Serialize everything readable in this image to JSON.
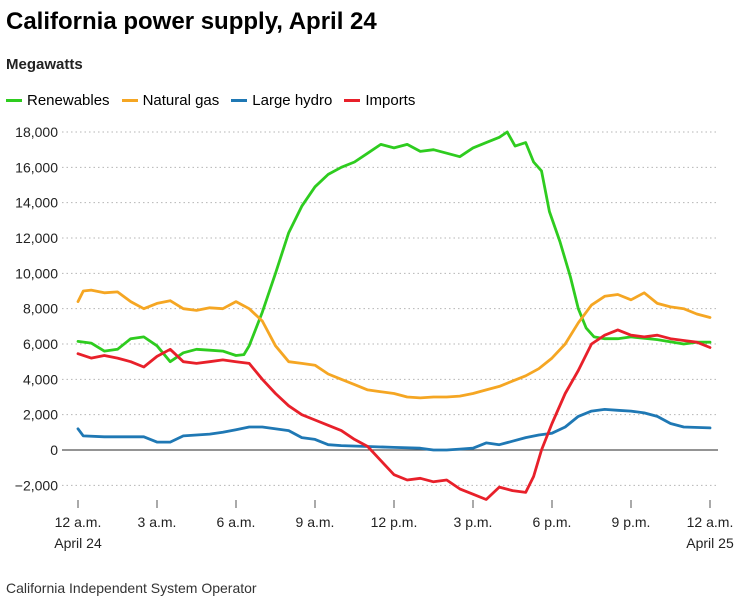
{
  "title": "California power supply, April 24",
  "subtitle": "Megawatts",
  "source": "California Independent System Operator",
  "chart_data": {
    "type": "line",
    "title": "California power supply, April 24",
    "ylabel": "Megawatts",
    "xlim": [
      0,
      24
    ],
    "ylim": [
      -3000,
      18500
    ],
    "grid": true,
    "legend_position": "top-left",
    "yticks": [
      {
        "value": 18000,
        "label": "18,000"
      },
      {
        "value": 16000,
        "label": "16,000"
      },
      {
        "value": 14000,
        "label": "14,000"
      },
      {
        "value": 12000,
        "label": "12,000"
      },
      {
        "value": 10000,
        "label": "10,000"
      },
      {
        "value": 8000,
        "label": "8,000"
      },
      {
        "value": 6000,
        "label": "6,000"
      },
      {
        "value": 4000,
        "label": "4,000"
      },
      {
        "value": 2000,
        "label": "2,000"
      },
      {
        "value": 0,
        "label": "0"
      },
      {
        "value": -2000,
        "label": "−2,000"
      }
    ],
    "xticks": [
      {
        "value": 0,
        "label": "12 a.m.",
        "sublabel": "April 24"
      },
      {
        "value": 3,
        "label": "3 a.m.",
        "sublabel": ""
      },
      {
        "value": 6,
        "label": "6 a.m.",
        "sublabel": ""
      },
      {
        "value": 9,
        "label": "9 a.m.",
        "sublabel": ""
      },
      {
        "value": 12,
        "label": "12 p.m.",
        "sublabel": ""
      },
      {
        "value": 15,
        "label": "3 p.m.",
        "sublabel": ""
      },
      {
        "value": 18,
        "label": "6 p.m.",
        "sublabel": ""
      },
      {
        "value": 21,
        "label": "9 p.m.",
        "sublabel": ""
      },
      {
        "value": 24,
        "label": "12 a.m.",
        "sublabel": "April 25"
      }
    ],
    "series": [
      {
        "name": "Renewables",
        "color": "#2ecc1f",
        "points": [
          [
            0,
            6150
          ],
          [
            0.5,
            6050
          ],
          [
            1,
            5600
          ],
          [
            1.5,
            5700
          ],
          [
            2,
            6300
          ],
          [
            2.5,
            6400
          ],
          [
            3,
            5900
          ],
          [
            3.5,
            5000
          ],
          [
            4,
            5500
          ],
          [
            4.5,
            5700
          ],
          [
            5,
            5650
          ],
          [
            5.5,
            5600
          ],
          [
            6,
            5350
          ],
          [
            6.3,
            5400
          ],
          [
            6.5,
            5900
          ],
          [
            7,
            7800
          ],
          [
            7.5,
            10000
          ],
          [
            8,
            12300
          ],
          [
            8.5,
            13800
          ],
          [
            9,
            14900
          ],
          [
            9.5,
            15600
          ],
          [
            10,
            16000
          ],
          [
            10.5,
            16300
          ],
          [
            11,
            16800
          ],
          [
            11.5,
            17300
          ],
          [
            12,
            17100
          ],
          [
            12.5,
            17300
          ],
          [
            13,
            16900
          ],
          [
            13.5,
            17000
          ],
          [
            14,
            16800
          ],
          [
            14.5,
            16600
          ],
          [
            15,
            17100
          ],
          [
            15.5,
            17400
          ],
          [
            16,
            17700
          ],
          [
            16.3,
            18000
          ],
          [
            16.6,
            17200
          ],
          [
            17,
            17400
          ],
          [
            17.3,
            16300
          ],
          [
            17.6,
            15800
          ],
          [
            17.9,
            13500
          ],
          [
            18.3,
            11800
          ],
          [
            18.7,
            9800
          ],
          [
            19,
            8000
          ],
          [
            19.3,
            6900
          ],
          [
            19.6,
            6400
          ],
          [
            20,
            6300
          ],
          [
            20.5,
            6300
          ],
          [
            21,
            6400
          ],
          [
            22,
            6250
          ],
          [
            23,
            6000
          ],
          [
            23.5,
            6100
          ],
          [
            24,
            6100
          ]
        ]
      },
      {
        "name": "Natural gas",
        "color": "#f5a623",
        "points": [
          [
            0,
            8400
          ],
          [
            0.2,
            9000
          ],
          [
            0.5,
            9050
          ],
          [
            1,
            8900
          ],
          [
            1.5,
            8950
          ],
          [
            2,
            8400
          ],
          [
            2.5,
            8000
          ],
          [
            3,
            8300
          ],
          [
            3.5,
            8450
          ],
          [
            4,
            8000
          ],
          [
            4.5,
            7900
          ],
          [
            5,
            8050
          ],
          [
            5.5,
            8000
          ],
          [
            6,
            8400
          ],
          [
            6.5,
            8000
          ],
          [
            7,
            7300
          ],
          [
            7.5,
            5900
          ],
          [
            8,
            5000
          ],
          [
            8.5,
            4900
          ],
          [
            9,
            4800
          ],
          [
            9.5,
            4300
          ],
          [
            10,
            4000
          ],
          [
            10.5,
            3700
          ],
          [
            11,
            3400
          ],
          [
            11.5,
            3300
          ],
          [
            12,
            3200
          ],
          [
            12.5,
            3000
          ],
          [
            13,
            2950
          ],
          [
            13.5,
            3000
          ],
          [
            14,
            3000
          ],
          [
            14.5,
            3050
          ],
          [
            15,
            3200
          ],
          [
            15.5,
            3400
          ],
          [
            16,
            3600
          ],
          [
            16.5,
            3900
          ],
          [
            17,
            4200
          ],
          [
            17.5,
            4600
          ],
          [
            18,
            5200
          ],
          [
            18.5,
            6000
          ],
          [
            19,
            7200
          ],
          [
            19.5,
            8200
          ],
          [
            20,
            8700
          ],
          [
            20.5,
            8800
          ],
          [
            21,
            8500
          ],
          [
            21.5,
            8900
          ],
          [
            22,
            8300
          ],
          [
            22.5,
            8100
          ],
          [
            23,
            8000
          ],
          [
            23.5,
            7700
          ],
          [
            24,
            7500
          ]
        ]
      },
      {
        "name": "Large hydro",
        "color": "#1f78b4",
        "points": [
          [
            0,
            1200
          ],
          [
            0.2,
            800
          ],
          [
            1,
            750
          ],
          [
            2,
            750
          ],
          [
            2.5,
            750
          ],
          [
            3,
            450
          ],
          [
            3.5,
            450
          ],
          [
            4,
            800
          ],
          [
            5,
            900
          ],
          [
            5.5,
            1000
          ],
          [
            6,
            1150
          ],
          [
            6.5,
            1300
          ],
          [
            7,
            1300
          ],
          [
            8,
            1100
          ],
          [
            8.5,
            700
          ],
          [
            9,
            600
          ],
          [
            9.5,
            300
          ],
          [
            10,
            250
          ],
          [
            11,
            200
          ],
          [
            12,
            150
          ],
          [
            13,
            100
          ],
          [
            13.5,
            0
          ],
          [
            14,
            0
          ],
          [
            14.5,
            50
          ],
          [
            15,
            100
          ],
          [
            15.5,
            400
          ],
          [
            16,
            300
          ],
          [
            16.5,
            500
          ],
          [
            17,
            700
          ],
          [
            17.5,
            850
          ],
          [
            18,
            950
          ],
          [
            18.5,
            1300
          ],
          [
            19,
            1900
          ],
          [
            19.5,
            2200
          ],
          [
            20,
            2300
          ],
          [
            20.5,
            2250
          ],
          [
            21,
            2200
          ],
          [
            21.5,
            2100
          ],
          [
            22,
            1900
          ],
          [
            22.5,
            1500
          ],
          [
            23,
            1300
          ],
          [
            24,
            1250
          ]
        ]
      },
      {
        "name": "Imports",
        "color": "#e8202a",
        "points": [
          [
            0,
            5450
          ],
          [
            0.5,
            5200
          ],
          [
            1,
            5350
          ],
          [
            1.5,
            5200
          ],
          [
            2,
            5000
          ],
          [
            2.5,
            4700
          ],
          [
            3,
            5300
          ],
          [
            3.5,
            5700
          ],
          [
            4,
            5000
          ],
          [
            4.5,
            4900
          ],
          [
            5,
            5000
          ],
          [
            5.5,
            5100
          ],
          [
            6,
            5000
          ],
          [
            6.5,
            4900
          ],
          [
            7,
            4000
          ],
          [
            7.5,
            3200
          ],
          [
            8,
            2500
          ],
          [
            8.5,
            2000
          ],
          [
            9,
            1700
          ],
          [
            9.5,
            1400
          ],
          [
            10,
            1100
          ],
          [
            10.5,
            600
          ],
          [
            11,
            200
          ],
          [
            11.5,
            -600
          ],
          [
            12,
            -1400
          ],
          [
            12.5,
            -1700
          ],
          [
            13,
            -1600
          ],
          [
            13.5,
            -1800
          ],
          [
            14,
            -1700
          ],
          [
            14.5,
            -2200
          ],
          [
            15,
            -2500
          ],
          [
            15.5,
            -2800
          ],
          [
            16,
            -2100
          ],
          [
            16.5,
            -2300
          ],
          [
            17,
            -2400
          ],
          [
            17.3,
            -1500
          ],
          [
            17.6,
            0
          ],
          [
            18,
            1500
          ],
          [
            18.5,
            3200
          ],
          [
            19,
            4500
          ],
          [
            19.5,
            6000
          ],
          [
            20,
            6500
          ],
          [
            20.5,
            6800
          ],
          [
            21,
            6500
          ],
          [
            21.5,
            6400
          ],
          [
            22,
            6500
          ],
          [
            22.5,
            6300
          ],
          [
            23,
            6200
          ],
          [
            23.5,
            6100
          ],
          [
            24,
            5800
          ]
        ]
      }
    ]
  }
}
